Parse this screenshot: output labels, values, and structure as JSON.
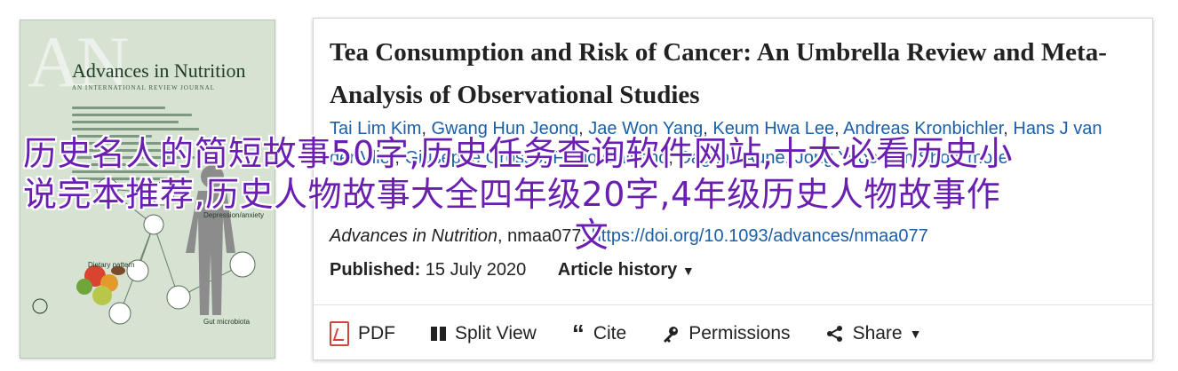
{
  "cover": {
    "watermark": "AN",
    "journal_title": "Advances in Nutrition",
    "journal_subtitle": "AN INTERNATIONAL REVIEW JOURNAL",
    "labels": {
      "depression": "Depression/anxiety",
      "dietary": "Dietary pattern",
      "gut": "Gut microbiota"
    }
  },
  "article": {
    "title": "Tea Consumption and Risk of Cancer: An Umbrella Review and Meta-Analysis of Observational Studies",
    "authors": [
      "Tai Lim Kim",
      "Gwang Hun Jeong",
      "Jae Won Yang",
      "Keum Hwa Lee",
      "Andreas Kronbichler",
      "Hans J van der Vliet",
      "Giuseppe Grosso",
      "Fabio Galvano",
      "Dagfinn Aune",
      "Jong Yeob Kim"
    ],
    "show_more": "Show more",
    "journal": "Advances in Nutrition",
    "article_id": "nmaa077",
    "doi": "https://doi.org/10.1093/advances/nmaa077",
    "published_label": "Published:",
    "published_date": "15 July 2020",
    "history_label": "Article history"
  },
  "toolbar": {
    "pdf": "PDF",
    "split_view": "Split View",
    "cite": "Cite",
    "permissions": "Permissions",
    "share": "Share"
  },
  "overlay": {
    "line1": "历史名人的简短故事50字,历史任务查询软件网站,十大必看历史小",
    "line2": "说完本推荐,历史人物故事大全四年级20字,4年级历史人物故事作",
    "line3": "文"
  }
}
